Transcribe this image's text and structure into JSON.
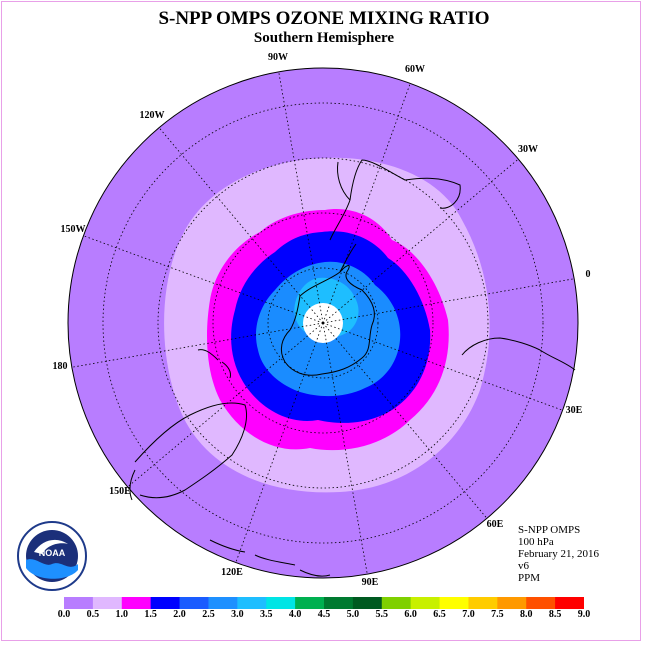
{
  "title": "S-NPP OMPS OZONE MIXING RATIO",
  "subtitle": "Southern Hemisphere",
  "longitude_labels": [
    {
      "label": "90W"
    },
    {
      "label": "60W"
    },
    {
      "label": "30W"
    },
    {
      "label": "0"
    },
    {
      "label": "30E"
    },
    {
      "label": "60E"
    },
    {
      "label": "90E"
    },
    {
      "label": "120E"
    },
    {
      "label": "150E"
    },
    {
      "label": "180"
    },
    {
      "label": "150W"
    },
    {
      "label": "120W"
    }
  ],
  "info": {
    "instrument": "S-NPP OMPS",
    "level": "100 hPa",
    "date": "February 21, 2016",
    "version": "v6",
    "units": "PPM"
  },
  "logo": {
    "text": "NOAA",
    "icon": "noaa-logo"
  },
  "colorbar": {
    "ticks": [
      "0.0",
      "0.5",
      "1.0",
      "1.5",
      "2.0",
      "2.5",
      "3.0",
      "3.5",
      "4.0",
      "4.5",
      "5.0",
      "5.5",
      "6.0",
      "6.5",
      "7.0",
      "7.5",
      "8.0",
      "8.5",
      "9.0"
    ],
    "colors": [
      "#b87dff",
      "#e0b8ff",
      "#ff00ff",
      "#0000ff",
      "#1a5cff",
      "#1e90ff",
      "#1ebeff",
      "#00e5e5",
      "#00b050",
      "#007a30",
      "#005a20",
      "#7fd000",
      "#c8f000",
      "#ffff00",
      "#ffcc00",
      "#ff9900",
      "#ff5000",
      "#ff0000",
      "#8b5a3c"
    ]
  },
  "legend_colors": {
    "ring_0": "#b87dff",
    "ring_1": "#e0b8ff",
    "ring_2": "#ff00ff",
    "ring_3": "#0000ff",
    "ring_4": "#1a8cff",
    "ring_5": "#1ebeff",
    "pole_hole": "#ffffff"
  }
}
